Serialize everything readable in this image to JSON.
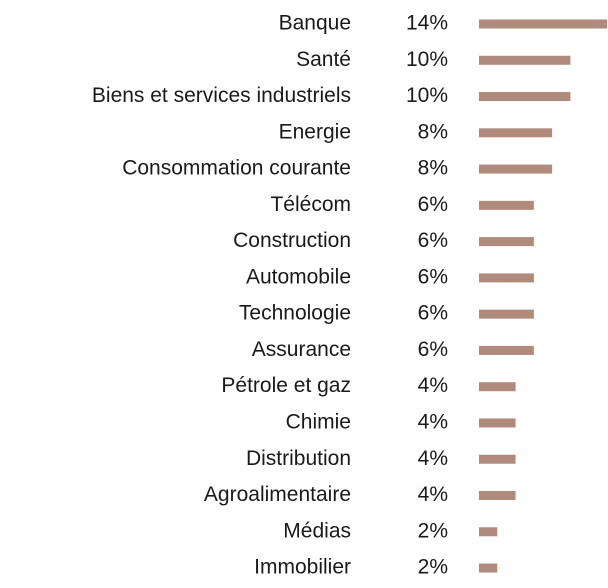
{
  "chart_data": {
    "type": "bar",
    "orientation": "horizontal",
    "categories": [
      "Banque",
      "Santé",
      "Biens et services industriels",
      "Energie",
      "Consommation courante",
      "Télécom",
      "Construction",
      "Automobile",
      "Technologie",
      "Assurance",
      "Pétrole et gaz",
      "Chimie",
      "Distribution",
      "Agroalimentaire",
      "Médias",
      "Immobilier"
    ],
    "values": [
      14,
      10,
      10,
      8,
      8,
      6,
      6,
      6,
      6,
      6,
      4,
      4,
      4,
      4,
      2,
      2
    ],
    "value_labels": [
      "14%",
      "10%",
      "10%",
      "8%",
      "8%",
      "6%",
      "6%",
      "6%",
      "6%",
      "6%",
      "4%",
      "4%",
      "4%",
      "4%",
      "2%",
      "2%"
    ],
    "color": "#b08a7b"
  }
}
